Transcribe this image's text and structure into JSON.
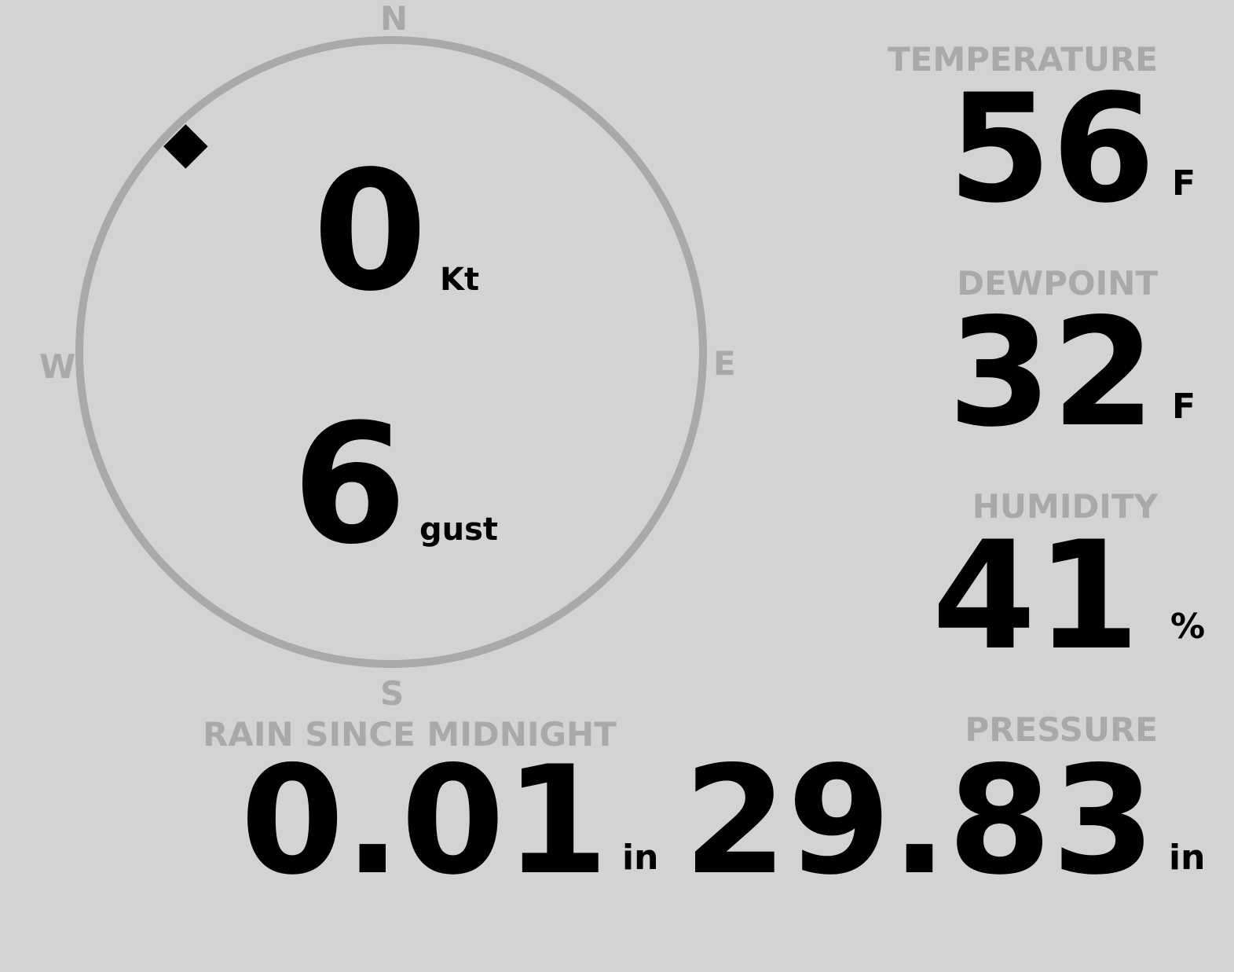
{
  "wind": {
    "compass": {
      "n": "N",
      "e": "E",
      "s": "S",
      "w": "W"
    },
    "direction_degrees": 315,
    "speed": "0",
    "speed_unit": "Kt",
    "gust": "6",
    "gust_unit": "gust"
  },
  "temperature": {
    "label": "TEMPERATURE",
    "value": "56",
    "unit": "F"
  },
  "dewpoint": {
    "label": "DEWPOINT",
    "value": "32",
    "unit": "F"
  },
  "humidity": {
    "label": "HUMIDITY",
    "value": "41",
    "unit": "%"
  },
  "rain": {
    "label": "RAIN SINCE MIDNIGHT",
    "value": "0.01",
    "unit": "in"
  },
  "pressure": {
    "label": "PRESSURE",
    "value": "29.83",
    "unit": "in"
  },
  "colors": {
    "background": "#d3d3d3",
    "muted": "#a9a9a9",
    "value": "#000000"
  }
}
